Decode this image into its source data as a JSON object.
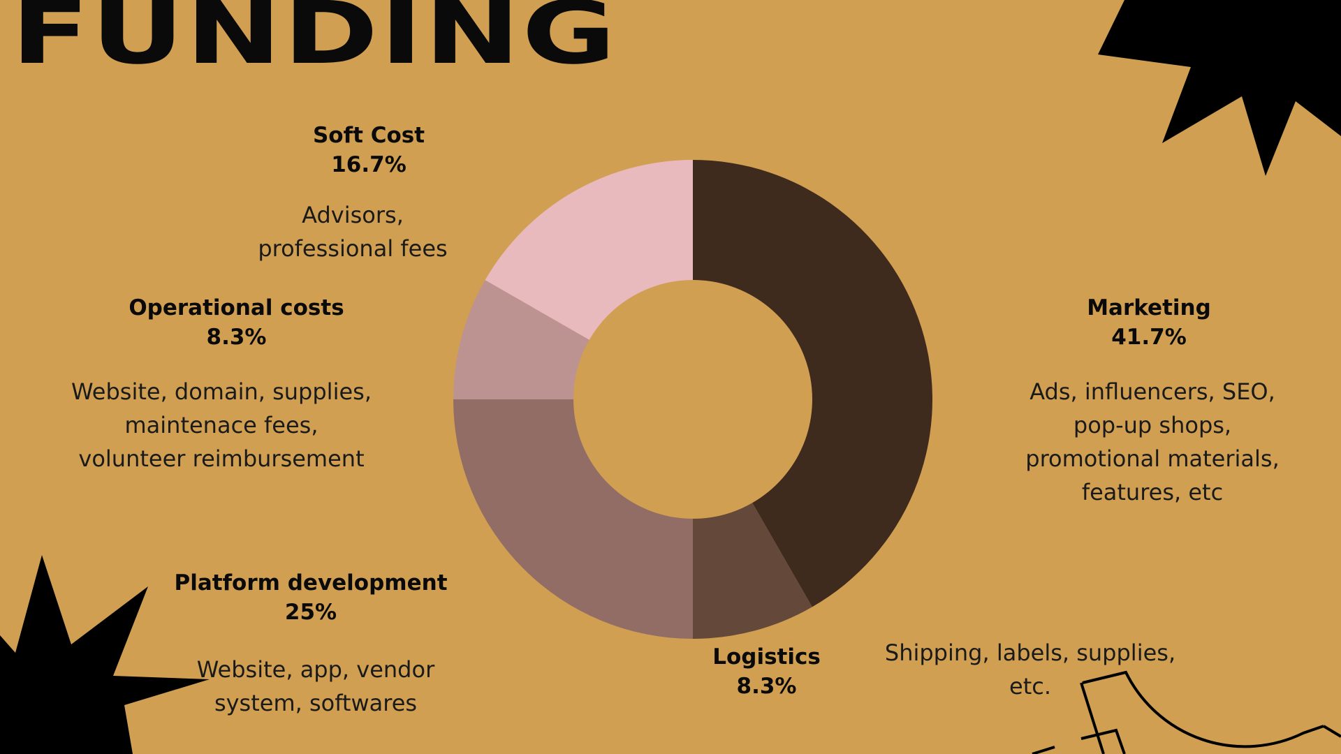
{
  "title": "FUNDING",
  "colors": {
    "background": "#d09f51",
    "text": "#0a0a0a"
  },
  "chart_data": {
    "type": "pie",
    "title": "FUNDING",
    "donut": true,
    "start": "top",
    "direction": "clockwise",
    "slices": [
      {
        "name": "Marketing",
        "value": 41.7,
        "percent_label": "41.7%",
        "color": "#3f2a1e",
        "description": [
          "Ads, influencers, SEO,",
          "pop-up shops,",
          "promotional materials,",
          "features, etc"
        ]
      },
      {
        "name": "Logistics",
        "value": 8.3,
        "percent_label": "8.3%",
        "color": "#64483a",
        "description": [
          "Shipping, labels, supplies,",
          "etc."
        ]
      },
      {
        "name": "Platform development",
        "value": 25,
        "percent_label": "25%",
        "color": "#916d66",
        "description": [
          "Website, app, vendor",
          "system, softwares"
        ]
      },
      {
        "name": "Operational costs",
        "value": 8.3,
        "percent_label": "8.3%",
        "color": "#bd9391",
        "description": [
          "Website, domain, supplies,",
          "maintenace fees,",
          "volunteer reimbursement"
        ]
      },
      {
        "name": "Soft Cost",
        "value": 16.7,
        "percent_label": "16.7%",
        "color": "#e8b9bd",
        "description": [
          "Advisors,",
          "professional fees"
        ]
      }
    ]
  }
}
